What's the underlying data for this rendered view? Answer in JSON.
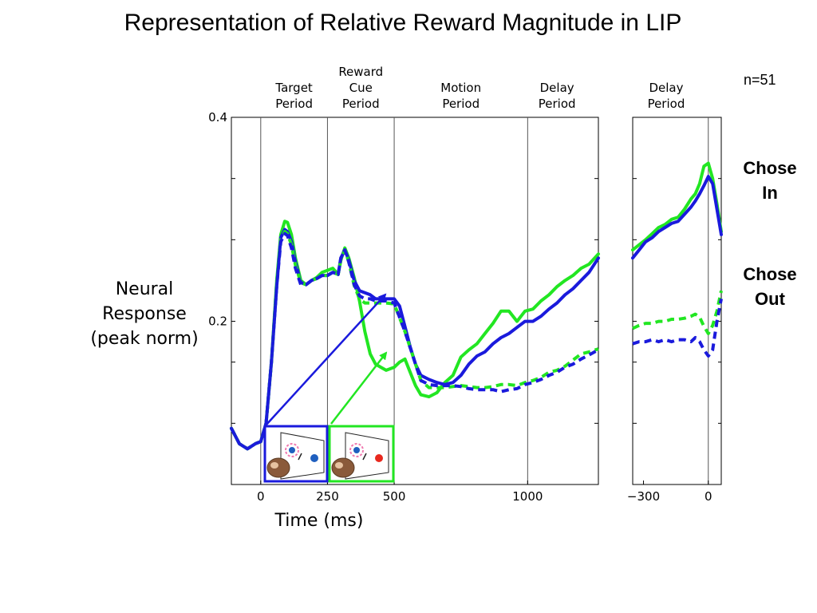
{
  "page": {
    "title": "Representation of Relative Reward Magnitude in LIP",
    "n_label": "n=51"
  },
  "legend": {
    "chose_in": [
      "Chose",
      "In"
    ],
    "chose_out": [
      "Chose",
      "Out"
    ]
  },
  "axes": {
    "ylabel": [
      "Neural",
      "Response",
      "(peak norm)"
    ],
    "xlabel": "Time (ms)"
  },
  "colors": {
    "low_reward": "#1a1adc",
    "high_reward": "#22e622",
    "axis": "#000000",
    "vline": "#555555",
    "inset_dot_blue": "#1f5fbf",
    "inset_dot_red": "#e8281e",
    "inset_ring": "#f07ab0"
  },
  "chart_data": [
    {
      "type": "line",
      "panel": "aligned to target onset",
      "xlim": [
        -110,
        1265
      ],
      "ylim": [
        0.04,
        0.4
      ],
      "yticks": [
        {
          "value": 0.4,
          "label": "0.4"
        },
        {
          "value": 0.2,
          "label": "0.2"
        }
      ],
      "yticks_unlabeled": [
        0.34,
        0.28,
        0.16,
        0.1
      ],
      "xticks": [
        {
          "value": 0,
          "label": "0"
        },
        {
          "value": 250,
          "label": "250"
        },
        {
          "value": 500,
          "label": "500"
        },
        {
          "value": 1000,
          "label": "1000"
        }
      ],
      "vlines": [
        0,
        250,
        500,
        1000
      ],
      "period_labels": [
        {
          "lines": [
            "Target",
            "Period"
          ],
          "x": 125
        },
        {
          "lines": [
            "Reward",
            "Cue",
            "Period"
          ],
          "x": 375
        },
        {
          "lines": [
            "Motion",
            "Period"
          ],
          "x": 750
        },
        {
          "lines": [
            "Delay",
            "Period"
          ],
          "x": 1110
        }
      ],
      "series": [
        {
          "color_key": "high_reward",
          "style": "solid",
          "x": [
            -110,
            -80,
            -50,
            -20,
            0,
            20,
            40,
            60,
            75,
            90,
            100,
            115,
            130,
            150,
            170,
            190,
            210,
            230,
            250,
            270,
            290,
            300,
            315,
            330,
            350,
            370,
            390,
            410,
            430,
            450,
            470,
            500,
            520,
            540,
            560,
            580,
            600,
            630,
            660,
            690,
            720,
            750,
            780,
            810,
            840,
            870,
            900,
            930,
            960,
            990,
            1020,
            1050,
            1080,
            1110,
            1140,
            1170,
            1200,
            1230,
            1265
          ],
          "y": [
            0.095,
            0.08,
            0.075,
            0.08,
            0.082,
            0.1,
            0.16,
            0.24,
            0.285,
            0.298,
            0.297,
            0.285,
            0.262,
            0.24,
            0.236,
            0.24,
            0.243,
            0.248,
            0.25,
            0.252,
            0.246,
            0.26,
            0.272,
            0.262,
            0.243,
            0.22,
            0.19,
            0.168,
            0.158,
            0.155,
            0.152,
            0.155,
            0.16,
            0.163,
            0.15,
            0.137,
            0.128,
            0.126,
            0.13,
            0.14,
            0.147,
            0.165,
            0.172,
            0.178,
            0.188,
            0.198,
            0.21,
            0.21,
            0.2,
            0.21,
            0.212,
            0.22,
            0.226,
            0.234,
            0.24,
            0.245,
            0.252,
            0.256,
            0.266
          ]
        },
        {
          "color_key": "low_reward",
          "style": "solid",
          "x": [
            -110,
            -80,
            -50,
            -20,
            0,
            20,
            40,
            60,
            75,
            90,
            100,
            115,
            130,
            150,
            170,
            190,
            210,
            230,
            250,
            270,
            290,
            300,
            315,
            330,
            350,
            370,
            390,
            410,
            430,
            450,
            470,
            500,
            520,
            540,
            560,
            580,
            600,
            630,
            660,
            690,
            720,
            750,
            780,
            810,
            840,
            870,
            900,
            930,
            960,
            990,
            1020,
            1050,
            1080,
            1110,
            1140,
            1170,
            1200,
            1230,
            1265
          ],
          "y": [
            0.095,
            0.08,
            0.075,
            0.08,
            0.082,
            0.1,
            0.16,
            0.235,
            0.282,
            0.29,
            0.288,
            0.278,
            0.258,
            0.238,
            0.236,
            0.24,
            0.242,
            0.245,
            0.245,
            0.248,
            0.246,
            0.262,
            0.27,
            0.26,
            0.24,
            0.23,
            0.228,
            0.226,
            0.222,
            0.222,
            0.222,
            0.222,
            0.215,
            0.195,
            0.175,
            0.158,
            0.147,
            0.143,
            0.14,
            0.138,
            0.14,
            0.147,
            0.158,
            0.166,
            0.17,
            0.178,
            0.184,
            0.188,
            0.194,
            0.2,
            0.2,
            0.205,
            0.212,
            0.218,
            0.226,
            0.232,
            0.24,
            0.248,
            0.262
          ]
        },
        {
          "color_key": "high_reward",
          "style": "dashed",
          "x": [
            -110,
            -80,
            -50,
            -20,
            0,
            20,
            40,
            60,
            75,
            90,
            100,
            115,
            130,
            150,
            170,
            190,
            210,
            230,
            250,
            270,
            290,
            300,
            315,
            330,
            350,
            370,
            390,
            410,
            430,
            450,
            470,
            500,
            540,
            580,
            600,
            630,
            660,
            690,
            720,
            750,
            780,
            810,
            840,
            870,
            900,
            930,
            960,
            990,
            1020,
            1050,
            1080,
            1110,
            1140,
            1170,
            1200,
            1230,
            1265
          ],
          "y": [
            0.095,
            0.08,
            0.075,
            0.08,
            0.082,
            0.1,
            0.16,
            0.24,
            0.28,
            0.288,
            0.286,
            0.275,
            0.255,
            0.238,
            0.236,
            0.24,
            0.242,
            0.245,
            0.245,
            0.248,
            0.246,
            0.26,
            0.27,
            0.258,
            0.235,
            0.222,
            0.218,
            0.218,
            0.218,
            0.218,
            0.218,
            0.217,
            0.19,
            0.158,
            0.142,
            0.135,
            0.135,
            0.135,
            0.136,
            0.137,
            0.136,
            0.135,
            0.135,
            0.136,
            0.138,
            0.138,
            0.137,
            0.14,
            0.142,
            0.145,
            0.15,
            0.152,
            0.156,
            0.162,
            0.168,
            0.17,
            0.173
          ]
        },
        {
          "color_key": "low_reward",
          "style": "dashed",
          "x": [
            -110,
            -80,
            -50,
            -20,
            0,
            20,
            40,
            60,
            75,
            90,
            100,
            115,
            130,
            150,
            170,
            190,
            210,
            230,
            250,
            270,
            290,
            300,
            315,
            330,
            350,
            370,
            390,
            410,
            430,
            450,
            470,
            500,
            540,
            580,
            600,
            630,
            660,
            690,
            720,
            750,
            780,
            810,
            840,
            870,
            900,
            930,
            960,
            990,
            1020,
            1050,
            1080,
            1110,
            1140,
            1170,
            1200,
            1230,
            1265
          ],
          "y": [
            0.095,
            0.08,
            0.075,
            0.08,
            0.082,
            0.1,
            0.16,
            0.235,
            0.278,
            0.286,
            0.284,
            0.272,
            0.252,
            0.236,
            0.236,
            0.24,
            0.242,
            0.245,
            0.245,
            0.248,
            0.246,
            0.262,
            0.27,
            0.258,
            0.236,
            0.225,
            0.222,
            0.222,
            0.22,
            0.22,
            0.22,
            0.218,
            0.19,
            0.158,
            0.142,
            0.138,
            0.137,
            0.137,
            0.137,
            0.136,
            0.134,
            0.133,
            0.133,
            0.133,
            0.131,
            0.133,
            0.134,
            0.138,
            0.14,
            0.143,
            0.147,
            0.15,
            0.155,
            0.158,
            0.163,
            0.167,
            0.172
          ]
        }
      ]
    },
    {
      "type": "line",
      "panel": "aligned to saccade",
      "xlim": [
        -350,
        60
      ],
      "ylim": [
        0.04,
        0.4
      ],
      "xticks": [
        {
          "value": -300,
          "label": "−300"
        },
        {
          "value": 0,
          "label": "0"
        }
      ],
      "vlines": [
        0
      ],
      "period_labels": [
        {
          "lines": [
            "Delay",
            "Period"
          ],
          "x": -195
        }
      ],
      "series": [
        {
          "color_key": "high_reward",
          "style": "solid",
          "x": [
            -350,
            -320,
            -290,
            -260,
            -230,
            -200,
            -170,
            -140,
            -110,
            -80,
            -60,
            -40,
            -20,
            0,
            20,
            40,
            60
          ],
          "y": [
            0.27,
            0.275,
            0.28,
            0.286,
            0.292,
            0.295,
            0.3,
            0.302,
            0.31,
            0.32,
            0.325,
            0.335,
            0.352,
            0.355,
            0.34,
            0.315,
            0.288
          ]
        },
        {
          "color_key": "low_reward",
          "style": "solid",
          "x": [
            -350,
            -320,
            -290,
            -260,
            -230,
            -200,
            -170,
            -140,
            -110,
            -80,
            -60,
            -40,
            -20,
            0,
            20,
            40,
            60
          ],
          "y": [
            0.262,
            0.27,
            0.278,
            0.282,
            0.288,
            0.292,
            0.296,
            0.298,
            0.305,
            0.312,
            0.318,
            0.325,
            0.333,
            0.342,
            0.335,
            0.31,
            0.285
          ]
        },
        {
          "color_key": "high_reward",
          "style": "dashed",
          "x": [
            -350,
            -320,
            -290,
            -260,
            -230,
            -200,
            -170,
            -140,
            -110,
            -80,
            -60,
            -40,
            -20,
            0,
            20,
            40,
            60
          ],
          "y": [
            0.193,
            0.196,
            0.198,
            0.198,
            0.2,
            0.2,
            0.202,
            0.202,
            0.203,
            0.205,
            0.207,
            0.204,
            0.195,
            0.188,
            0.196,
            0.21,
            0.23
          ]
        },
        {
          "color_key": "low_reward",
          "style": "dashed",
          "x": [
            -350,
            -320,
            -290,
            -260,
            -230,
            -200,
            -170,
            -140,
            -110,
            -80,
            -60,
            -40,
            -20,
            0,
            20,
            40,
            60
          ],
          "y": [
            0.178,
            0.18,
            0.18,
            0.182,
            0.18,
            0.182,
            0.18,
            0.182,
            0.182,
            0.18,
            0.184,
            0.18,
            0.172,
            0.166,
            0.172,
            0.2,
            0.222
          ]
        }
      ]
    }
  ]
}
